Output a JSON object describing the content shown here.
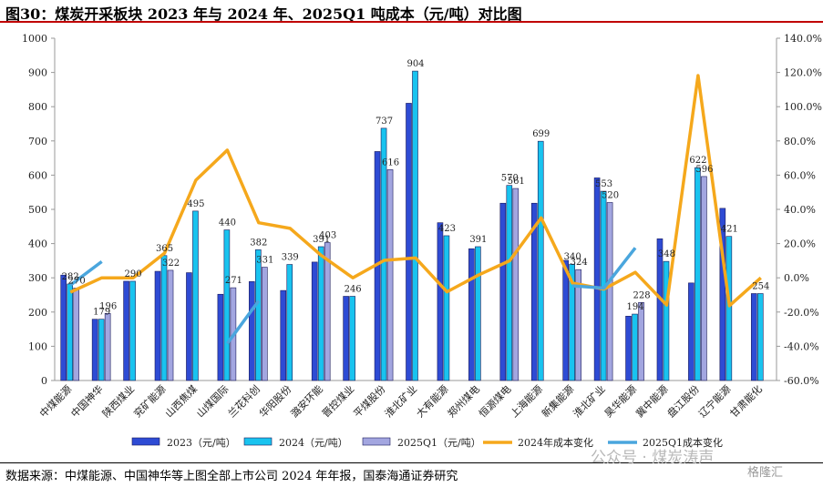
{
  "title": "图30：煤炭开采板块 2023 年与 2024 年、2025Q1 吨成本（元/吨）对比图",
  "source": "数据来源：中煤能源、中国神华等上图全部上市公司 2024 年年报，国泰海通证券研究",
  "watermark": "公众号 · 煤炭涛声",
  "badge": "格隆汇",
  "colors": {
    "s2023": "#2e4bd4",
    "s2024": "#19c3ef",
    "s2025q1": "#a3a6e0",
    "chg2024": "#f5a81c",
    "chg2025q1": "#4aa6dd",
    "title_rule": "#c00000"
  },
  "chart_data": {
    "type": "bar",
    "categories": [
      "中煤能源",
      "中国神华",
      "陕西煤业",
      "兖矿能源",
      "山西焦煤",
      "山煤国际",
      "兰花科创",
      "华阳股份",
      "潞安环能",
      "晋控煤业",
      "平煤股份",
      "淮北矿业",
      "大有能源",
      "郑州煤电",
      "恒源煤电",
      "上海能源",
      "新集能源",
      "淮北矿业",
      "昊华能源",
      "冀中能源",
      "盘江股份",
      "辽宁能源",
      "甘肃能化"
    ],
    "y_left": {
      "lim": [
        0,
        1000
      ],
      "ticks": [
        0,
        100,
        200,
        300,
        400,
        500,
        600,
        700,
        800,
        900,
        1000
      ]
    },
    "y_right": {
      "lim": [
        -60,
        140
      ],
      "ticks": [
        "-60.0%",
        "-40.0%",
        "-20.0%",
        "0.0%",
        "20.0%",
        "40.0%",
        "60.0%",
        "80.0%",
        "100.0%",
        "120.0%",
        "140.0%"
      ]
    },
    "legend": [
      "2023（元/吨）",
      "2024（元/吨）",
      "2025Q1（元/吨）",
      "2024年成本变化",
      "2025Q1成本变化"
    ],
    "legend_position": "bottom",
    "series": [
      {
        "name": "2023（元/吨）",
        "type": "bar",
        "values": [
          308,
          179,
          290,
          319,
          315,
          252,
          289,
          263,
          346,
          246,
          669,
          810,
          461,
          385,
          518,
          518,
          351,
          592,
          188,
          414,
          285,
          503,
          254
        ]
      },
      {
        "name": "2024（元/吨）",
        "type": "bar",
        "values": [
          282,
          179,
          290,
          365,
          495,
          440,
          382,
          339,
          391,
          246,
          737,
          904,
          423,
          391,
          570,
          699,
          340,
          553,
          194,
          348,
          622,
          421,
          254
        ],
        "labels": [
          "282",
          "179",
          "290",
          "365",
          "495",
          "440",
          "382",
          "339",
          "391",
          "246",
          "737",
          "904",
          "423",
          "391",
          "570",
          "699",
          "340",
          "553",
          "194",
          "348",
          "622",
          "421",
          "254"
        ]
      },
      {
        "name": "2025Q1（元/吨）",
        "type": "bar",
        "values": [
          270,
          196,
          null,
          322,
          null,
          271,
          331,
          null,
          403,
          null,
          616,
          null,
          null,
          null,
          561,
          null,
          324,
          520,
          228,
          null,
          596,
          null,
          null
        ],
        "labels": [
          "270",
          "196",
          "",
          "322",
          "",
          "271",
          "331",
          "",
          "403",
          "",
          "616",
          "",
          "",
          "",
          "561",
          "",
          "324",
          "520",
          "228",
          "",
          "596",
          "",
          ""
        ]
      },
      {
        "name": "2024年成本变化",
        "type": "line",
        "axis": "right",
        "values": [
          -8.4,
          0.0,
          0.0,
          14.4,
          57.1,
          74.6,
          32.2,
          28.9,
          13.0,
          0.0,
          10.2,
          11.6,
          -8.2,
          1.6,
          10.0,
          35.0,
          -3.1,
          -6.6,
          3.2,
          -15.9,
          118.2,
          -16.3,
          0.0
        ]
      },
      {
        "name": "2025Q1成本变化",
        "type": "line",
        "axis": "right",
        "values": [
          -4.3,
          9.5,
          null,
          null,
          null,
          -38.4,
          -13.4,
          null,
          null,
          null,
          null,
          null,
          null,
          null,
          null,
          null,
          -4.7,
          -6.0,
          17.5,
          null,
          null,
          null,
          null
        ]
      }
    ]
  }
}
